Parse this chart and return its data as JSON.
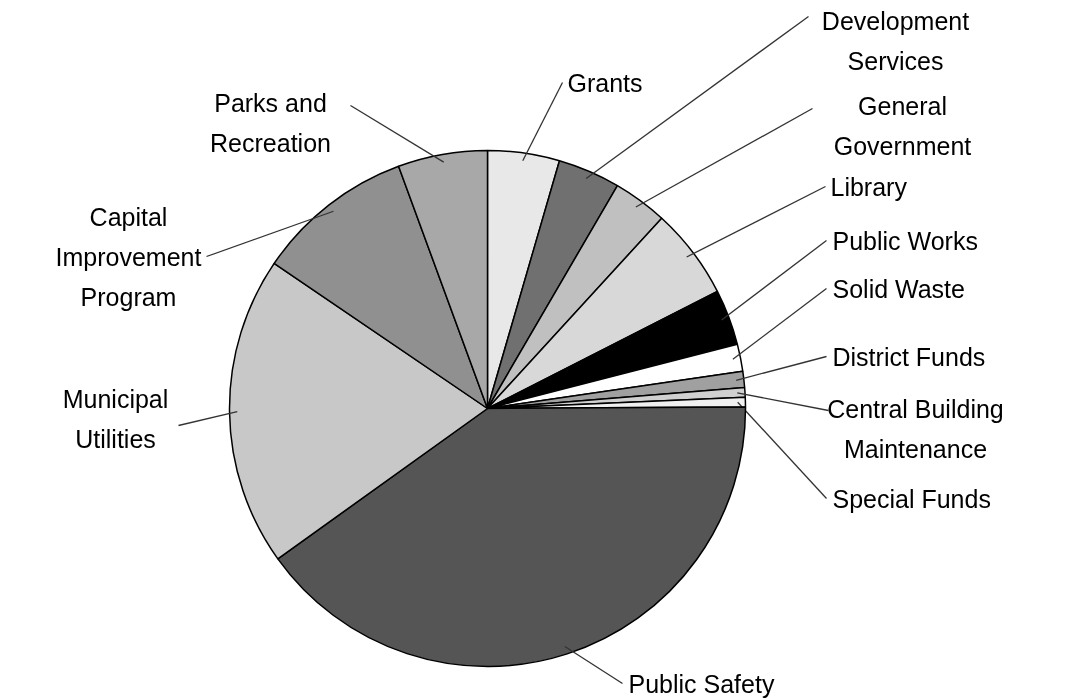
{
  "chart_data": {
    "type": "pie",
    "categories": [
      "Grants",
      "Development\nServices",
      "General\nGovernment",
      "Library",
      "Public Works",
      "Solid Waste",
      "District Funds",
      "Central Building\nMaintenance",
      "Special Funds",
      "Public Safety",
      "Municipal\nUtilities",
      "Capital\nImprovement\nProgram",
      "Parks and\nRecreation"
    ],
    "values": [
      4.5,
      3.9,
      3.4,
      5.7,
      3.5,
      1.7,
      1.0,
      0.6,
      0.6,
      40.2,
      19.4,
      9.9,
      5.6
    ],
    "colors": [
      "#e8e8e8",
      "#707070",
      "#c0c0c0",
      "#d8d8d8",
      "#000000",
      "#ffffff",
      "#a0a0a0",
      "#d0d0d0",
      "#f0f0f0",
      "#555555",
      "#c8c8c8",
      "#909090",
      "#a8a8a8"
    ]
  }
}
